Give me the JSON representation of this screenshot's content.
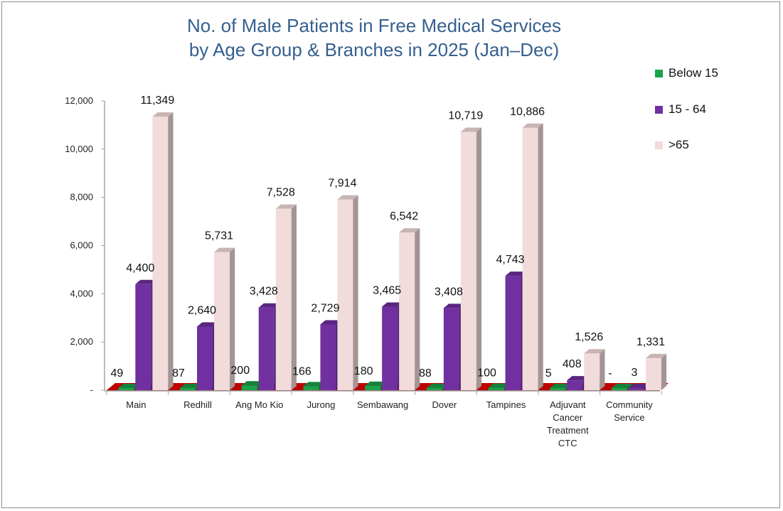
{
  "chart_data": {
    "type": "bar",
    "variant": "3d-clustered-column",
    "title": [
      "No. of Male Patients in Free Medical Services",
      "by Age Group & Branches in 2025 (Jan–Dec)"
    ],
    "xlabel": "",
    "ylabel": "",
    "ylim": [
      0,
      12000
    ],
    "yticks": [
      0,
      2000,
      4000,
      6000,
      8000,
      10000,
      12000
    ],
    "ytick_labels": [
      "-",
      "2,000",
      "4,000",
      "6,000",
      "8,000",
      "10,000",
      "12,000"
    ],
    "grid": false,
    "legend_position": "top-right",
    "categories": [
      [
        "Main"
      ],
      [
        "Redhill"
      ],
      [
        "Ang Mo Kio"
      ],
      [
        "Jurong"
      ],
      [
        "Sembawang"
      ],
      [
        "Dover"
      ],
      [
        "Tampines"
      ],
      [
        "Adjuvant",
        "Cancer",
        "Treatment",
        "CTC"
      ],
      [
        "Community",
        "Service"
      ]
    ],
    "series": [
      {
        "name": "Below 15",
        "color": "#1aa34a",
        "values": [
          49,
          87,
          200,
          166,
          180,
          88,
          100,
          5,
          0
        ],
        "labels": [
          "49",
          "87",
          "200",
          "166",
          "180",
          "88",
          "100",
          "5",
          "-"
        ]
      },
      {
        "name": "15 - 64",
        "color": "#7030a0",
        "values": [
          4400,
          2640,
          3428,
          2729,
          3465,
          3408,
          4743,
          408,
          3
        ],
        "labels": [
          "4,400",
          "2,640",
          "3,428",
          "2,729",
          "3,465",
          "3,408",
          "4,743",
          "408",
          "3"
        ]
      },
      {
        "name": ">65",
        "color": "#f2dcdb",
        "values": [
          11349,
          5731,
          7528,
          7914,
          6542,
          10719,
          10886,
          1526,
          1331
        ],
        "labels": [
          "11,349",
          "5,731",
          "7,528",
          "7,914",
          "6,542",
          "10,719",
          "10,886",
          "1,526",
          "1,331"
        ]
      }
    ],
    "floor_color": "#c00000"
  }
}
